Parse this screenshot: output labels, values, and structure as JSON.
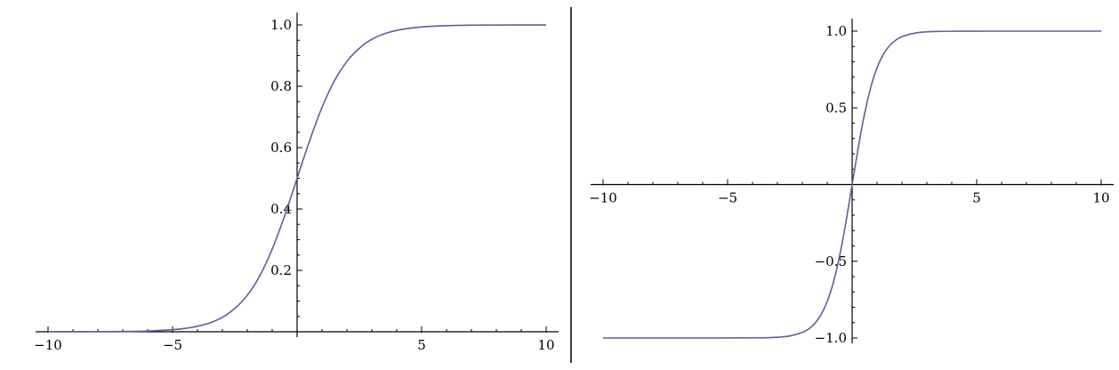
{
  "colors": {
    "curve": "#5e5f9c",
    "axis": "#000000",
    "divider": "#000000"
  },
  "chart_data": [
    {
      "type": "line",
      "title": "",
      "xlabel": "",
      "ylabel": "",
      "xlim": [
        -10,
        10
      ],
      "ylim": [
        0,
        1
      ],
      "grid": false,
      "x_ticks": [
        {
          "value": -10,
          "label": "−10"
        },
        {
          "value": -5,
          "label": "−5"
        },
        {
          "value": 5,
          "label": "5"
        },
        {
          "value": 10,
          "label": "10"
        }
      ],
      "y_ticks": [
        {
          "value": 0.2,
          "label": "0.2"
        },
        {
          "value": 0.4,
          "label": "0.4"
        },
        {
          "value": 0.6,
          "label": "0.6"
        },
        {
          "value": 0.8,
          "label": "0.8"
        },
        {
          "value": 1.0,
          "label": "1.0"
        }
      ],
      "series": [
        {
          "x": [
            -10,
            -9,
            -8,
            -7,
            -6,
            -5,
            -4.5,
            -4,
            -3.5,
            -3,
            -2.5,
            -2,
            -1.5,
            -1,
            -0.5,
            0,
            0.5,
            1,
            1.5,
            2,
            2.5,
            3,
            3.5,
            4,
            4.5,
            5,
            6,
            7,
            8,
            9,
            10
          ],
          "y": [
            5e-05,
            0.00012,
            0.00034,
            0.0009,
            0.0025,
            0.0067,
            0.011,
            0.018,
            0.029,
            0.047,
            0.076,
            0.119,
            0.182,
            0.269,
            0.378,
            0.5,
            0.622,
            0.731,
            0.818,
            0.881,
            0.924,
            0.953,
            0.971,
            0.982,
            0.989,
            0.9933,
            0.9975,
            0.9991,
            0.99966,
            0.99988,
            0.99995
          ]
        }
      ]
    },
    {
      "type": "line",
      "title": "",
      "xlabel": "",
      "ylabel": "",
      "xlim": [
        -10,
        10
      ],
      "ylim": [
        -1,
        1
      ],
      "grid": false,
      "x_ticks": [
        {
          "value": -10,
          "label": "−10"
        },
        {
          "value": -5,
          "label": "−5"
        },
        {
          "value": 5,
          "label": "5"
        },
        {
          "value": 10,
          "label": "10"
        }
      ],
      "y_ticks": [
        {
          "value": -1.0,
          "label": "−1.0"
        },
        {
          "value": -0.5,
          "label": "−0.5"
        },
        {
          "value": 0.5,
          "label": "0.5"
        },
        {
          "value": 1.0,
          "label": "1.0"
        }
      ],
      "series": [
        {
          "x": [
            -10,
            -8,
            -6,
            -5,
            -4,
            -3.5,
            -3,
            -2.5,
            -2,
            -1.75,
            -1.5,
            -1.25,
            -1,
            -0.75,
            -0.5,
            -0.25,
            0,
            0.25,
            0.5,
            0.75,
            1,
            1.25,
            1.5,
            1.75,
            2,
            2.5,
            3,
            3.5,
            4,
            5,
            6,
            8,
            10
          ],
          "y": [
            -1.0,
            -1.0,
            -1.0,
            -0.9999,
            -0.9993,
            -0.9982,
            -0.9951,
            -0.9866,
            -0.964,
            -0.9414,
            -0.9051,
            -0.8483,
            -0.7616,
            -0.6351,
            -0.4621,
            -0.2449,
            0,
            0.2449,
            0.4621,
            0.6351,
            0.7616,
            0.8483,
            0.9051,
            0.9414,
            0.964,
            0.9866,
            0.9951,
            0.9982,
            0.9993,
            0.9999,
            1.0,
            1.0,
            1.0
          ]
        }
      ]
    }
  ]
}
